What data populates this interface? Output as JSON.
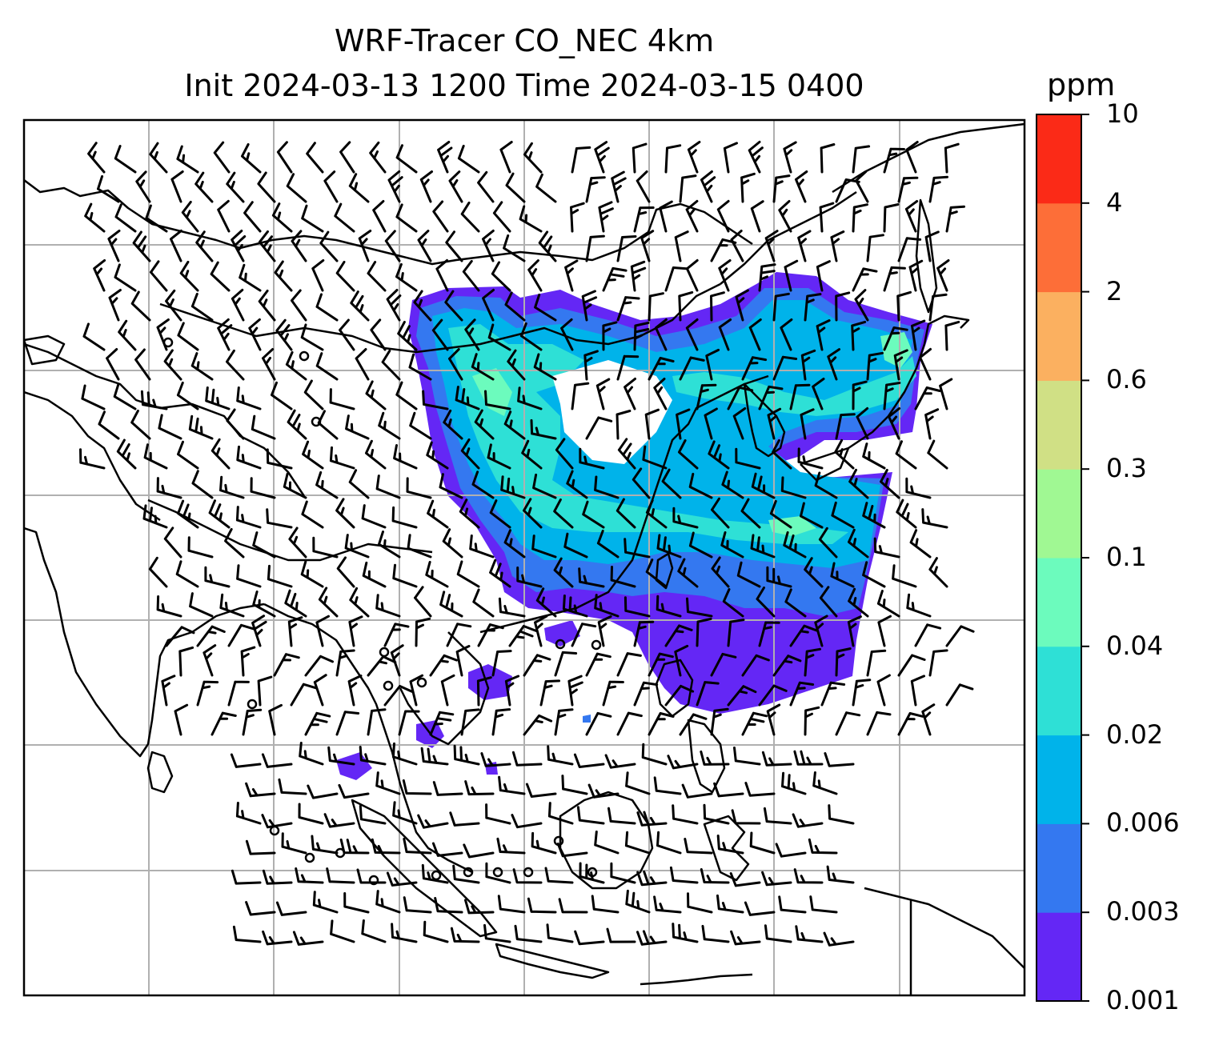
{
  "title": {
    "line1": "WRF-Tracer CO_NEC 4km",
    "line2": "Init 2024-03-13 1200 Time 2024-03-15 0400"
  },
  "colorbar": {
    "unit": "ppm",
    "levels": [
      "0.001",
      "0.003",
      "0.006",
      "0.02",
      "0.04",
      "0.1",
      "0.3",
      "0.6",
      "2",
      "4",
      "10"
    ],
    "colors": [
      "#6427f5",
      "#3478f0",
      "#00b3ea",
      "#2ee0d6",
      "#6cfbbd",
      "#a0f893",
      "#d0e085",
      "#fbb060",
      "#fd6e38",
      "#fb2a17"
    ]
  },
  "map": {
    "gridlines": true,
    "gridline_color": "#b0b0b0",
    "coastline_color": "#000000",
    "overlay": "wind barbs",
    "plume": "CO tracer concentration over East Asia"
  }
}
